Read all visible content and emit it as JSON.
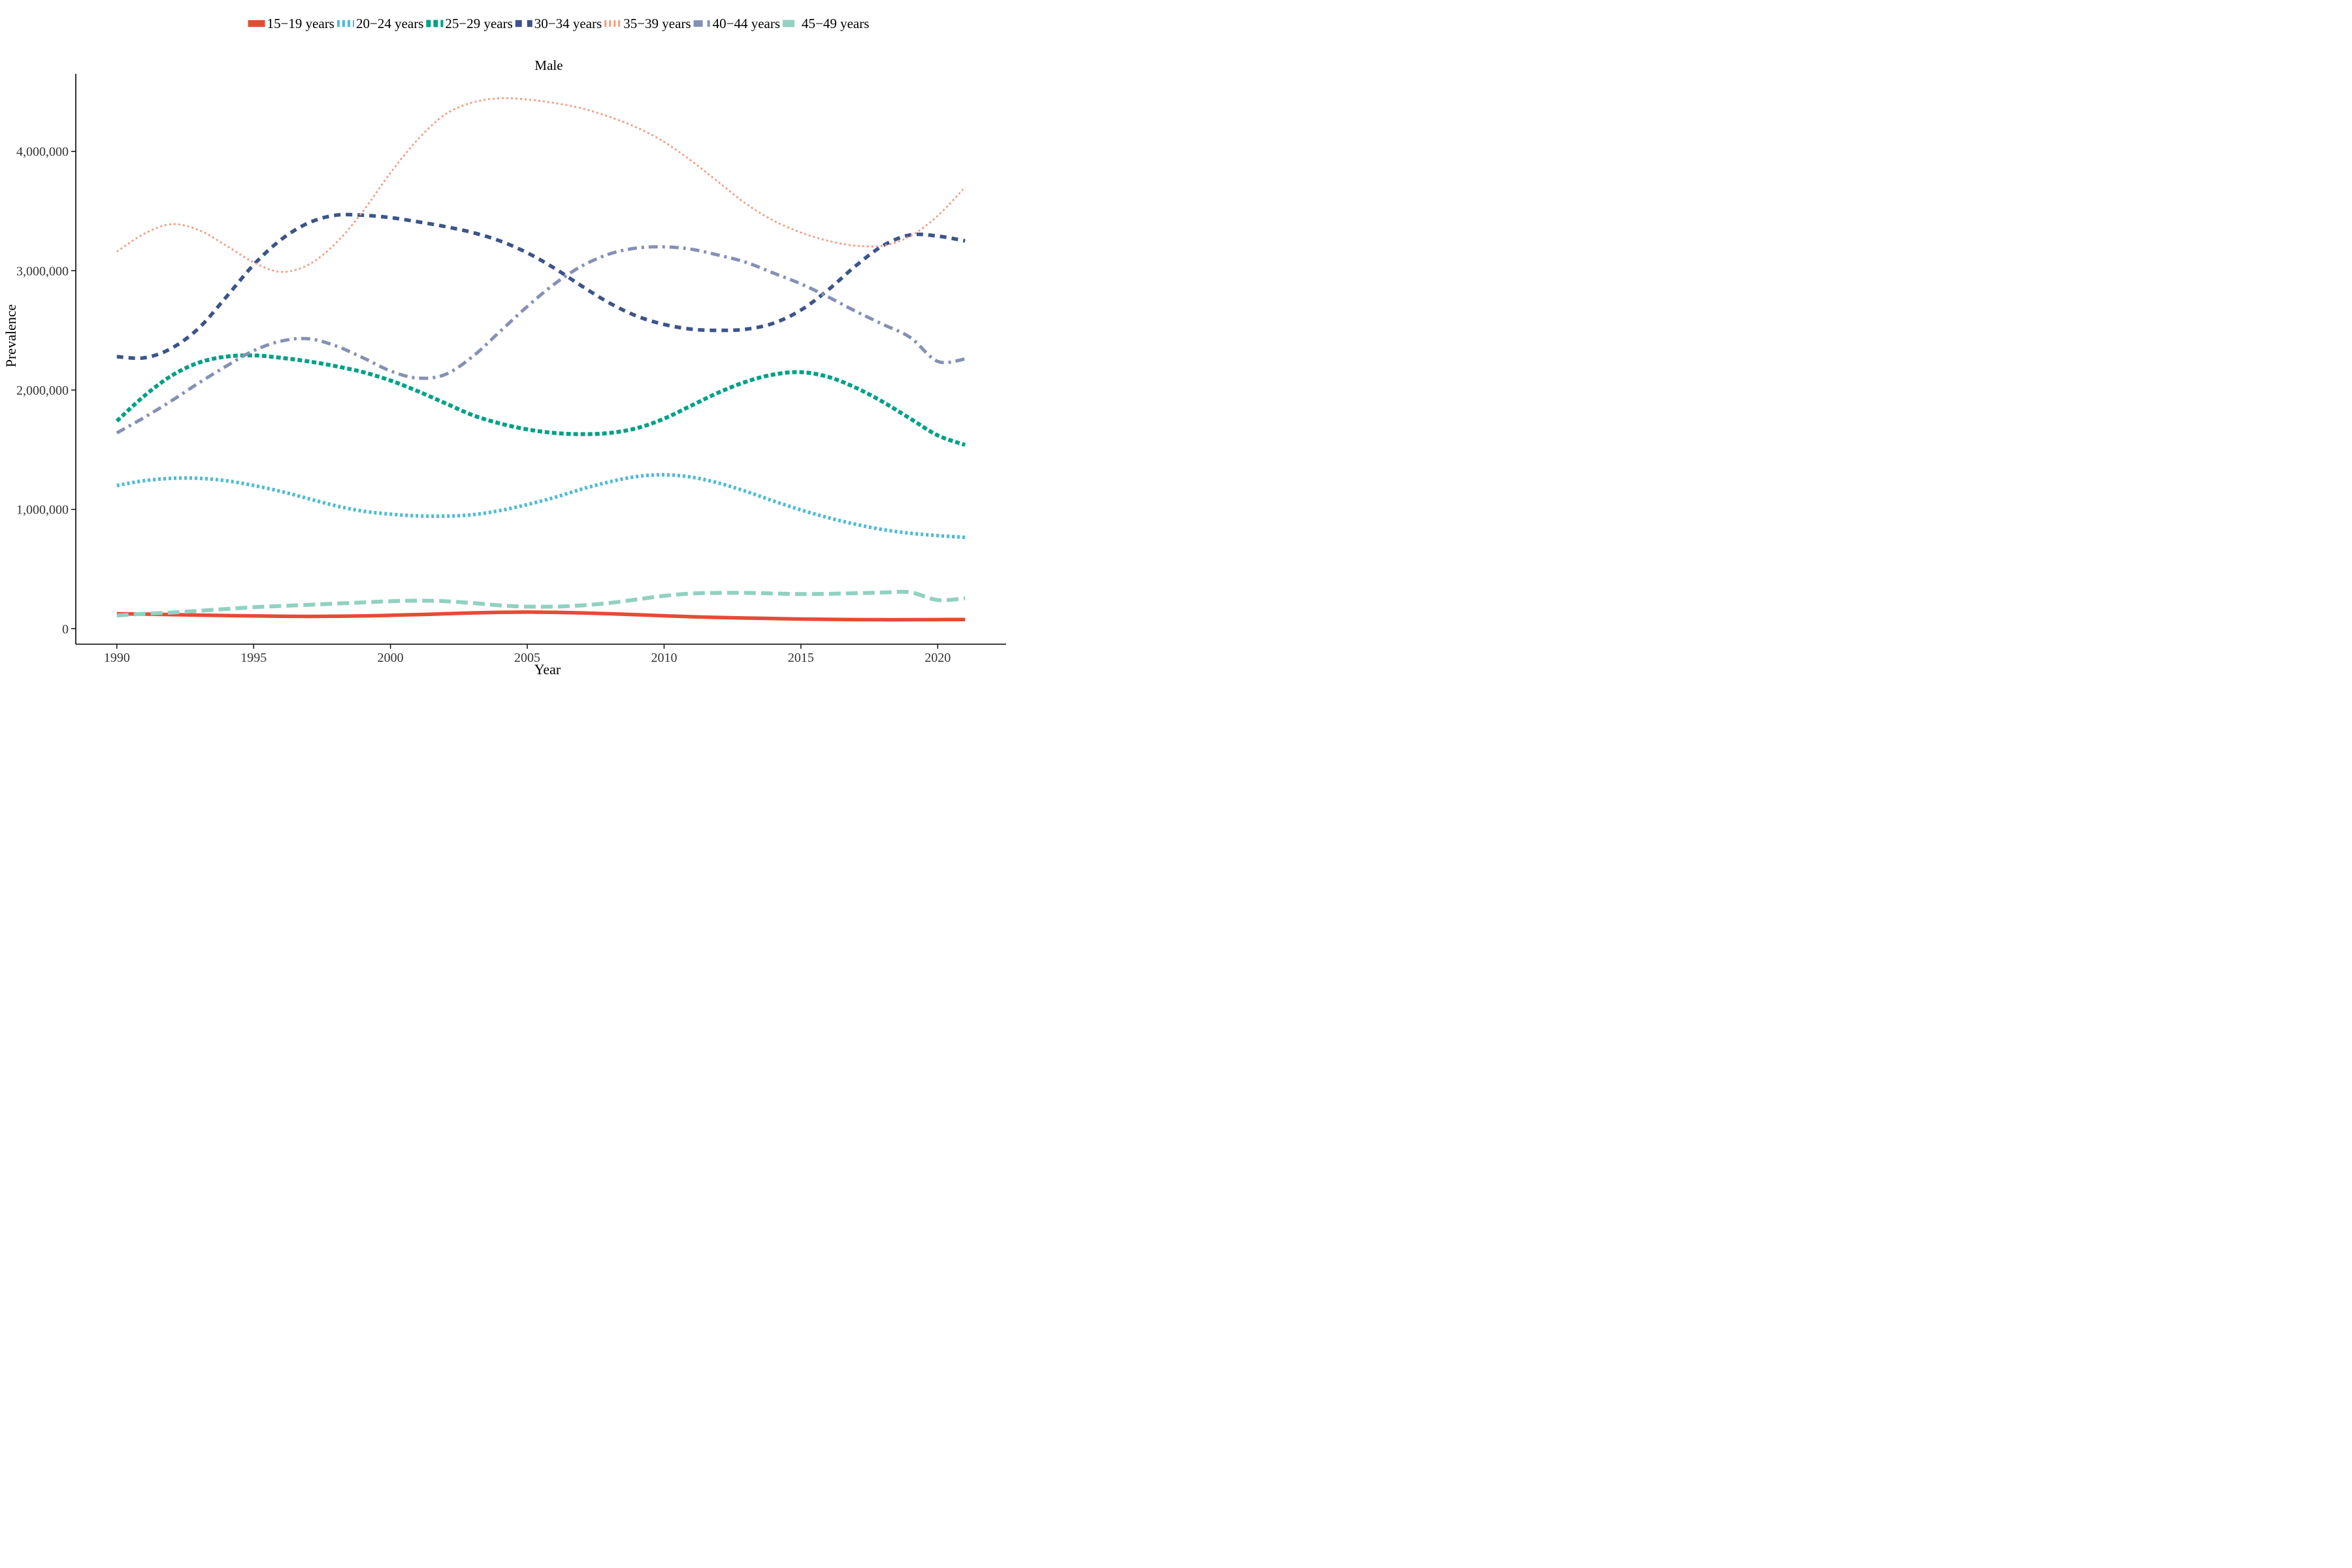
{
  "chart_data": {
    "type": "line",
    "title": "Male",
    "xlabel": "Year",
    "ylabel": "Prevalence",
    "xlim": [
      1988.5,
      2022.5
    ],
    "ylim": [
      -130000,
      4650000
    ],
    "x_ticks": [
      1990,
      1995,
      2000,
      2005,
      2010,
      2015,
      2020
    ],
    "x_tick_labels": [
      "1990",
      "1995",
      "2000",
      "2005",
      "2010",
      "2015",
      "2020"
    ],
    "y_ticks": [
      0,
      1000000,
      2000000,
      3000000,
      4000000
    ],
    "y_tick_labels": [
      "0",
      "1,000,000",
      "2,000,000",
      "3,000,000",
      "4,000,000"
    ],
    "grid": false,
    "legend_position": "top",
    "x": [
      1990,
      1991,
      1992,
      1993,
      1994,
      1995,
      1996,
      1997,
      1998,
      1999,
      2000,
      2001,
      2002,
      2003,
      2004,
      2005,
      2006,
      2007,
      2008,
      2009,
      2010,
      2011,
      2012,
      2013,
      2014,
      2015,
      2016,
      2017,
      2018,
      2019,
      2020,
      2021
    ],
    "series": [
      {
        "name": "15−19 years",
        "color": "#E64B35",
        "line_style": "solid",
        "values": [
          125000,
          122000,
          118000,
          114000,
          110000,
          107000,
          104000,
          103000,
          104000,
          107000,
          112000,
          118000,
          125000,
          132000,
          137000,
          139000,
          137000,
          132000,
          125000,
          117000,
          108000,
          100000,
          94000,
          89000,
          85000,
          81000,
          78000,
          76000,
          75000,
          75000,
          76000,
          77000
        ]
      },
      {
        "name": "20−24 years",
        "color": "#4DBBD5",
        "line_style": "dotted",
        "values": [
          1200000,
          1240000,
          1260000,
          1260000,
          1240000,
          1200000,
          1150000,
          1090000,
          1030000,
          985000,
          960000,
          945000,
          943000,
          955000,
          990000,
          1040000,
          1100000,
          1170000,
          1230000,
          1275000,
          1290000,
          1270000,
          1220000,
          1150000,
          1070000,
          995000,
          930000,
          875000,
          830000,
          800000,
          780000,
          765000
        ]
      },
      {
        "name": "25−29 years",
        "color": "#00A087",
        "line_style": "dashed-dense",
        "values": [
          1740000,
          1950000,
          2120000,
          2230000,
          2280000,
          2290000,
          2270000,
          2240000,
          2200000,
          2150000,
          2080000,
          1990000,
          1890000,
          1790000,
          1720000,
          1670000,
          1640000,
          1630000,
          1640000,
          1680000,
          1760000,
          1870000,
          1980000,
          2070000,
          2130000,
          2150000,
          2110000,
          2020000,
          1900000,
          1760000,
          1620000,
          1540000
        ]
      },
      {
        "name": "30−34 years",
        "color": "#3C5488",
        "line_style": "dashed",
        "values": [
          2280000,
          2270000,
          2350000,
          2520000,
          2780000,
          3050000,
          3260000,
          3400000,
          3465000,
          3465000,
          3445000,
          3410000,
          3370000,
          3320000,
          3250000,
          3150000,
          3020000,
          2870000,
          2730000,
          2620000,
          2550000,
          2510000,
          2500000,
          2510000,
          2560000,
          2670000,
          2840000,
          3040000,
          3210000,
          3300000,
          3290000,
          3250000
        ]
      },
      {
        "name": "35−39 years",
        "color": "#F39B7F",
        "line_style": "dotted-thin",
        "values": [
          3160000,
          3310000,
          3390000,
          3340000,
          3210000,
          3070000,
          2990000,
          3050000,
          3230000,
          3500000,
          3820000,
          4100000,
          4310000,
          4410000,
          4445000,
          4435000,
          4405000,
          4360000,
          4290000,
          4200000,
          4080000,
          3920000,
          3740000,
          3560000,
          3420000,
          3320000,
          3250000,
          3210000,
          3210000,
          3290000,
          3460000,
          3700000
        ]
      },
      {
        "name": "40−44 years",
        "color": "#8491B4",
        "line_style": "dashdot",
        "values": [
          1640000,
          1770000,
          1910000,
          2060000,
          2200000,
          2330000,
          2410000,
          2430000,
          2370000,
          2270000,
          2160000,
          2100000,
          2130000,
          2280000,
          2490000,
          2700000,
          2890000,
          3040000,
          3140000,
          3190000,
          3200000,
          3180000,
          3130000,
          3070000,
          2980000,
          2890000,
          2780000,
          2660000,
          2550000,
          2440000,
          2240000,
          2260000
        ]
      },
      {
        "name": "45−49 years",
        "color": "#91D1C2",
        "line_style": "longdash",
        "values": [
          110000,
          125000,
          135000,
          150000,
          165000,
          180000,
          190000,
          200000,
          210000,
          220000,
          230000,
          235000,
          230000,
          215000,
          195000,
          185000,
          185000,
          195000,
          215000,
          245000,
          275000,
          295000,
          300000,
          300000,
          295000,
          290000,
          292000,
          297000,
          303000,
          305000,
          240000,
          255000
        ]
      }
    ]
  }
}
